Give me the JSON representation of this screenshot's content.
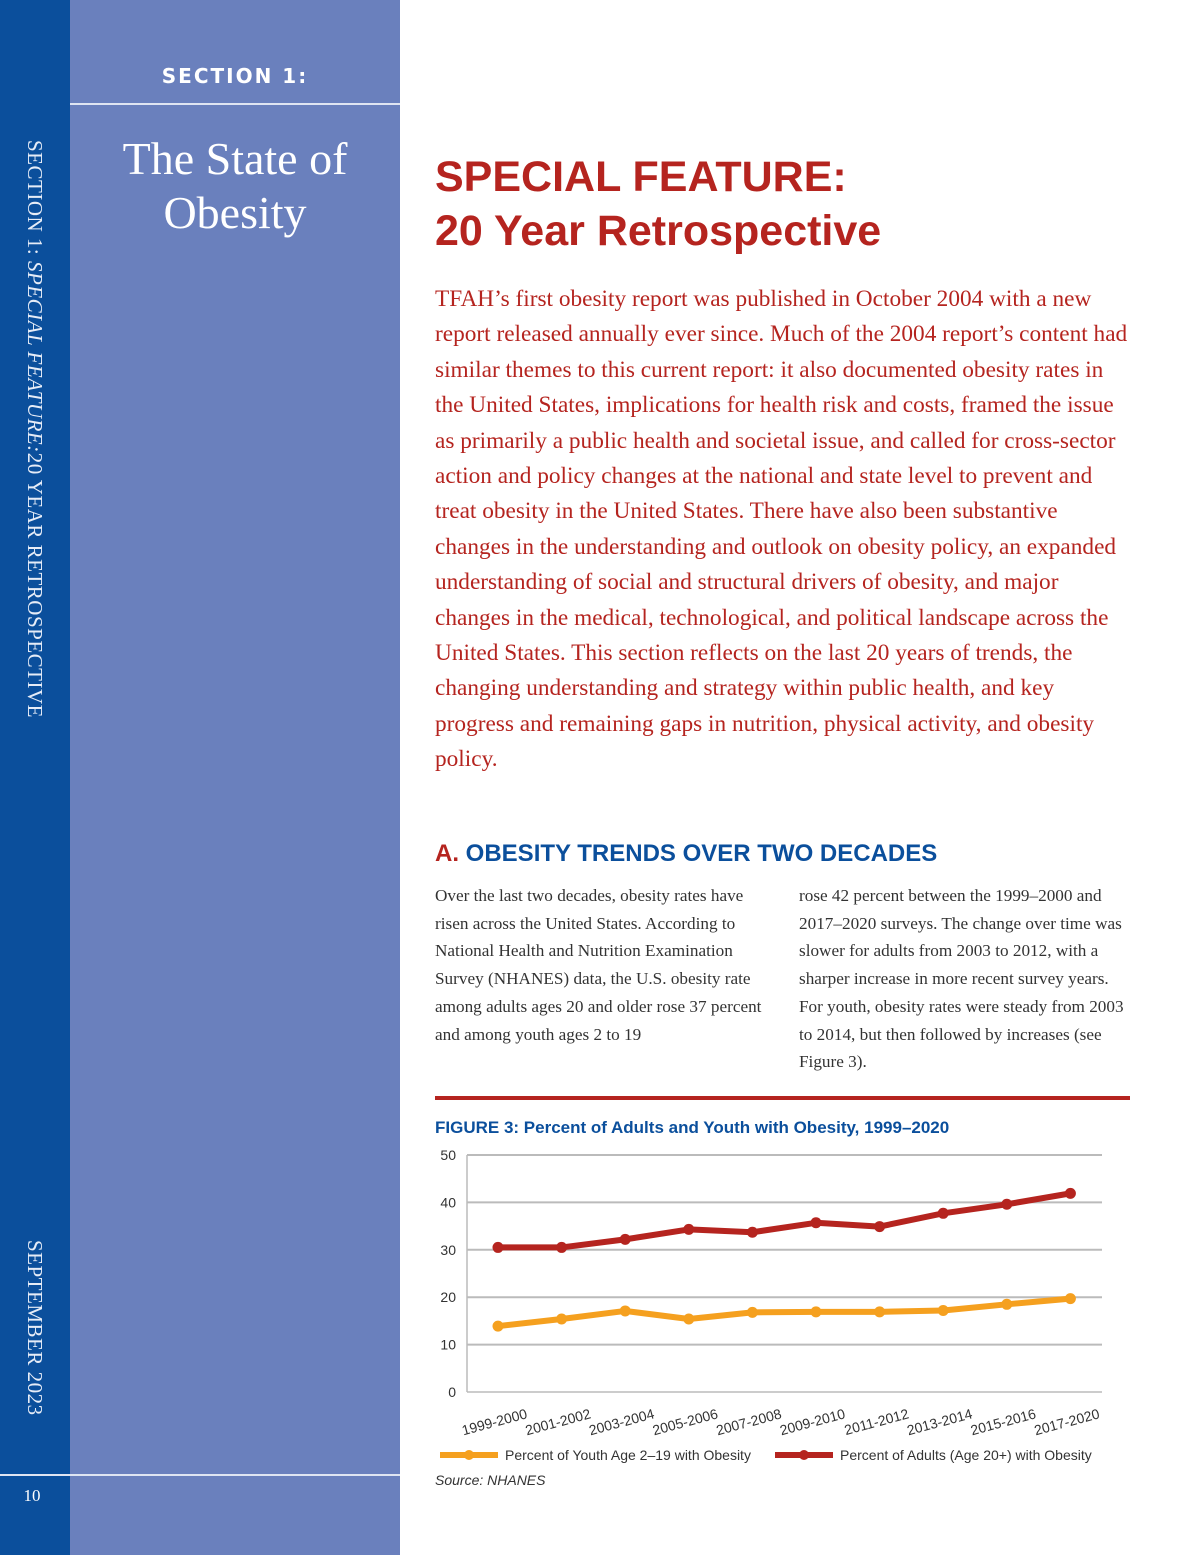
{
  "sidebar": {
    "running_head_prefix": "SECTION 1: ",
    "running_head_italic": "SPECIAL FEATURE:",
    "running_head_suffix": "20 YEAR RETROSPECTIVE",
    "date": "SEPTEMBER 2023",
    "page_number": "10",
    "section_label": "SECTION 1:",
    "title_line1": "The State of",
    "title_line2": "Obesity"
  },
  "main": {
    "title_line1": "SPECIAL FEATURE:",
    "title_line2": "20 Year Retrospective",
    "intro": "TFAH’s first obesity report was published in October 2004 with a new report released annually ever since. Much of the 2004 report’s content had similar themes to this current report: it also documented obesity rates in the United States, implications for health risk and costs, framed the issue as primarily a public health and societal issue, and called for cross-sector action and policy changes at the national and state level to prevent and treat obesity in the United States. There have also been substantive changes in the understanding and outlook on obesity policy, an expanded understanding of social and structural drivers of obesity, and major changes in the medical, technological, and political landscape across the United States. This section reflects on the last 20 years of trends, the changing understanding and strategy within public health, and key progress and remaining gaps in nutrition, physical activity, and obesity policy.",
    "section_a_letter": "A.",
    "section_a_title": "OBESITY TRENDS OVER TWO DECADES",
    "col1": "Over the last two decades, obesity rates have risen across the United States. According to National Health and Nutrition Examination Survey (NHANES) data, the U.S. obesity rate among adults ages 20 and older rose 37 percent and among youth ages 2 to 19",
    "col2": "rose 42 percent between the 1999–2000 and 2017–2020 surveys. The change over time was slower for adults from 2003 to 2012, with a sharper increase in more recent survey years. For youth, obesity rates were steady from 2003 to 2014, but then followed by increases (see Figure 3).",
    "figure_title": "FIGURE 3: Percent of Adults and Youth with Obesity, 1999–2020",
    "source": "Source: NHANES"
  },
  "colors": {
    "dark_blue": "#0b4f9c",
    "panel_blue": "#6a80bd",
    "red": "#b5241f",
    "orange": "#f5a01f"
  },
  "chart_data": {
    "type": "line",
    "grid": true,
    "legend": "bottom",
    "ylim": [
      0,
      50
    ],
    "yticks": [
      "0",
      "10",
      "20",
      "30",
      "40",
      "50"
    ],
    "categories": [
      "1999-2000",
      "2001-2002",
      "2003-2004",
      "2005-2006",
      "2007-2008",
      "2009-2010",
      "2011-2012",
      "2013-2014",
      "2015-2016",
      "2017-2020"
    ],
    "series": [
      {
        "name": "Percent of Youth Age 2-19 with Obesity",
        "color": "#f5a01f",
        "values": [
          13.9,
          15.4,
          17.1,
          15.4,
          16.8,
          16.9,
          16.9,
          17.2,
          18.5,
          19.7
        ]
      },
      {
        "name": "Percent of Adults (Age 20+) with Obesity",
        "color": "#b5241f",
        "values": [
          30.5,
          30.5,
          32.2,
          34.3,
          33.7,
          35.7,
          34.9,
          37.7,
          39.6,
          41.9
        ]
      }
    ]
  }
}
